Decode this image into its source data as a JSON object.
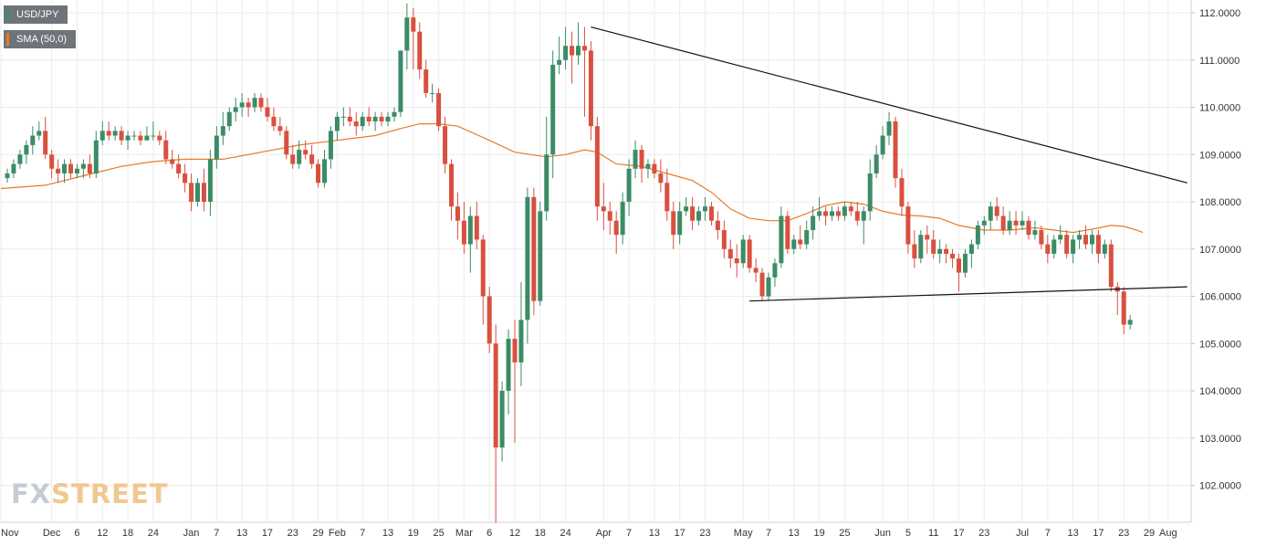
{
  "legend": [
    {
      "label": "USD/JPY",
      "color": "#3b8c66"
    },
    {
      "label": "SMA (50,0)",
      "color": "#e87a2a"
    }
  ],
  "watermark": {
    "part1": "FX",
    "part2": "STREET"
  },
  "chart_data": {
    "type": "candlestick",
    "symbol": "USD/JPY",
    "ylim": [
      101.2,
      112.3
    ],
    "y_ticks": [
      "112.0000",
      "111.0000",
      "110.0000",
      "109.0000",
      "108.0000",
      "107.0000",
      "106.0000",
      "105.0000",
      "104.0000",
      "103.0000",
      "102.0000"
    ],
    "x_ticks": [
      {
        "label": "Nov",
        "i": -1
      },
      {
        "label": "Dec",
        "i": 7
      },
      {
        "label": "6",
        "i": 11
      },
      {
        "label": "12",
        "i": 15
      },
      {
        "label": "18",
        "i": 19
      },
      {
        "label": "24",
        "i": 23
      },
      {
        "label": "Jan",
        "i": 29
      },
      {
        "label": "7",
        "i": 33
      },
      {
        "label": "13",
        "i": 37
      },
      {
        "label": "17",
        "i": 41
      },
      {
        "label": "23",
        "i": 45
      },
      {
        "label": "29",
        "i": 49
      },
      {
        "label": "Feb",
        "i": 52
      },
      {
        "label": "7",
        "i": 56
      },
      {
        "label": "13",
        "i": 60
      },
      {
        "label": "19",
        "i": 64
      },
      {
        "label": "25",
        "i": 68
      },
      {
        "label": "Mar",
        "i": 72
      },
      {
        "label": "6",
        "i": 76
      },
      {
        "label": "12",
        "i": 80
      },
      {
        "label": "18",
        "i": 84
      },
      {
        "label": "24",
        "i": 88
      },
      {
        "label": "Apr",
        "i": 94
      },
      {
        "label": "7",
        "i": 98
      },
      {
        "label": "13",
        "i": 102
      },
      {
        "label": "17",
        "i": 106
      },
      {
        "label": "23",
        "i": 110
      },
      {
        "label": "May",
        "i": 116
      },
      {
        "label": "7",
        "i": 120
      },
      {
        "label": "13",
        "i": 124
      },
      {
        "label": "19",
        "i": 128
      },
      {
        "label": "25",
        "i": 132
      },
      {
        "label": "Jun",
        "i": 138
      },
      {
        "label": "5",
        "i": 142
      },
      {
        "label": "11",
        "i": 146
      },
      {
        "label": "17",
        "i": 150
      },
      {
        "label": "23",
        "i": 154
      },
      {
        "label": "Jul",
        "i": 160
      },
      {
        "label": "7",
        "i": 164
      },
      {
        "label": "13",
        "i": 168
      },
      {
        "label": "17",
        "i": 172
      },
      {
        "label": "23",
        "i": 176
      },
      {
        "label": "29",
        "i": 180
      },
      {
        "label": "Aug",
        "i": 183
      }
    ],
    "candles": [
      [
        108.5,
        108.7,
        108.4,
        108.6
      ],
      [
        108.6,
        108.9,
        108.5,
        108.8
      ],
      [
        108.8,
        109.1,
        108.7,
        109.0
      ],
      [
        109.0,
        109.3,
        108.8,
        109.2
      ],
      [
        109.2,
        109.6,
        109.0,
        109.4
      ],
      [
        109.4,
        109.7,
        109.3,
        109.5
      ],
      [
        109.5,
        109.8,
        108.9,
        109.0
      ],
      [
        109.0,
        109.1,
        108.5,
        108.7
      ],
      [
        108.7,
        108.9,
        108.4,
        108.6
      ],
      [
        108.6,
        108.9,
        108.4,
        108.8
      ],
      [
        108.8,
        108.9,
        108.5,
        108.6
      ],
      [
        108.6,
        108.8,
        108.5,
        108.7
      ],
      [
        108.7,
        108.9,
        108.5,
        108.8
      ],
      [
        108.8,
        109.0,
        108.5,
        108.6
      ],
      [
        108.6,
        109.5,
        108.5,
        109.3
      ],
      [
        109.3,
        109.7,
        109.2,
        109.5
      ],
      [
        109.5,
        109.7,
        109.3,
        109.4
      ],
      [
        109.4,
        109.6,
        109.3,
        109.5
      ],
      [
        109.5,
        109.6,
        109.2,
        109.3
      ],
      [
        109.3,
        109.5,
        109.1,
        109.4
      ],
      [
        109.4,
        109.5,
        109.3,
        109.4
      ],
      [
        109.4,
        109.5,
        109.2,
        109.3
      ],
      [
        109.3,
        109.6,
        109.3,
        109.4
      ],
      [
        109.4,
        109.7,
        109.3,
        109.4
      ],
      [
        109.4,
        109.5,
        109.2,
        109.3
      ],
      [
        109.3,
        109.5,
        108.8,
        108.9
      ],
      [
        108.9,
        109.1,
        108.7,
        108.8
      ],
      [
        108.8,
        109.0,
        108.5,
        108.6
      ],
      [
        108.6,
        108.8,
        108.2,
        108.4
      ],
      [
        108.4,
        108.6,
        107.8,
        108.0
      ],
      [
        108.0,
        108.5,
        107.9,
        108.4
      ],
      [
        108.4,
        108.7,
        107.8,
        108.0
      ],
      [
        108.0,
        109.1,
        107.7,
        108.9
      ],
      [
        108.9,
        109.6,
        108.7,
        109.4
      ],
      [
        109.4,
        109.9,
        109.2,
        109.6
      ],
      [
        109.6,
        110.0,
        109.5,
        109.9
      ],
      [
        109.9,
        110.2,
        109.7,
        110.0
      ],
      [
        110.0,
        110.3,
        109.8,
        110.1
      ],
      [
        110.1,
        110.2,
        109.8,
        110.0
      ],
      [
        110.0,
        110.3,
        109.9,
        110.2
      ],
      [
        110.2,
        110.3,
        109.9,
        110.0
      ],
      [
        110.0,
        110.2,
        109.7,
        109.8
      ],
      [
        109.8,
        110.0,
        109.5,
        109.6
      ],
      [
        109.6,
        109.8,
        109.4,
        109.5
      ],
      [
        109.5,
        109.6,
        108.9,
        109.0
      ],
      [
        109.0,
        109.2,
        108.7,
        108.8
      ],
      [
        108.8,
        109.3,
        108.7,
        109.1
      ],
      [
        109.1,
        109.3,
        108.9,
        109.0
      ],
      [
        109.0,
        109.2,
        108.7,
        108.8
      ],
      [
        108.8,
        108.9,
        108.3,
        108.4
      ],
      [
        108.4,
        109.1,
        108.3,
        108.9
      ],
      [
        108.9,
        109.6,
        108.7,
        109.5
      ],
      [
        109.5,
        109.9,
        109.3,
        109.8
      ],
      [
        109.8,
        110.0,
        109.6,
        109.8
      ],
      [
        109.8,
        110.0,
        109.6,
        109.7
      ],
      [
        109.7,
        109.9,
        109.4,
        109.6
      ],
      [
        109.6,
        109.9,
        109.5,
        109.8
      ],
      [
        109.8,
        110.0,
        109.6,
        109.7
      ],
      [
        109.7,
        109.9,
        109.5,
        109.8
      ],
      [
        109.8,
        109.9,
        109.6,
        109.7
      ],
      [
        109.7,
        109.9,
        109.6,
        109.8
      ],
      [
        109.8,
        110.0,
        109.7,
        109.9
      ],
      [
        109.9,
        111.2,
        109.8,
        111.2
      ],
      [
        111.2,
        112.2,
        110.8,
        111.9
      ],
      [
        111.9,
        112.1,
        110.8,
        111.6
      ],
      [
        111.6,
        111.8,
        110.6,
        110.8
      ],
      [
        110.8,
        111.0,
        110.2,
        110.3
      ],
      [
        110.3,
        110.5,
        110.1,
        110.3
      ],
      [
        110.3,
        110.4,
        109.5,
        109.6
      ],
      [
        109.6,
        109.8,
        108.6,
        108.8
      ],
      [
        108.8,
        108.9,
        107.6,
        107.9
      ],
      [
        107.9,
        108.2,
        107.2,
        107.6
      ],
      [
        107.6,
        108.0,
        106.9,
        107.1
      ],
      [
        107.1,
        107.9,
        106.5,
        107.7
      ],
      [
        107.7,
        108.0,
        107.0,
        107.2
      ],
      [
        107.2,
        107.3,
        105.4,
        106.0
      ],
      [
        106.0,
        106.2,
        104.8,
        105.0
      ],
      [
        105.0,
        105.4,
        101.2,
        102.8
      ],
      [
        102.8,
        104.2,
        102.5,
        104.0
      ],
      [
        104.0,
        105.3,
        103.5,
        105.1
      ],
      [
        105.1,
        105.5,
        102.9,
        104.6
      ],
      [
        104.6,
        106.3,
        104.1,
        105.5
      ],
      [
        105.5,
        108.3,
        105.0,
        108.1
      ],
      [
        108.1,
        108.3,
        105.6,
        105.9
      ],
      [
        105.9,
        108.0,
        105.8,
        107.8
      ],
      [
        107.8,
        109.8,
        107.6,
        109.0
      ],
      [
        109.0,
        111.2,
        108.5,
        110.9
      ],
      [
        110.9,
        111.5,
        110.7,
        111.0
      ],
      [
        111.0,
        111.7,
        110.8,
        111.3
      ],
      [
        111.3,
        111.6,
        110.5,
        111.1
      ],
      [
        111.1,
        111.8,
        110.9,
        111.3
      ],
      [
        111.3,
        111.7,
        109.8,
        111.2
      ],
      [
        111.2,
        111.4,
        109.3,
        109.6
      ],
      [
        109.6,
        109.8,
        107.6,
        107.9
      ],
      [
        107.9,
        108.4,
        107.4,
        107.8
      ],
      [
        107.8,
        108.0,
        107.3,
        107.6
      ],
      [
        107.6,
        107.8,
        106.9,
        107.3
      ],
      [
        107.3,
        108.2,
        107.1,
        108.0
      ],
      [
        108.0,
        108.9,
        107.7,
        108.7
      ],
      [
        108.7,
        109.3,
        108.5,
        109.1
      ],
      [
        109.1,
        109.2,
        108.4,
        108.7
      ],
      [
        108.7,
        108.9,
        108.5,
        108.8
      ],
      [
        108.8,
        108.9,
        108.5,
        108.6
      ],
      [
        108.6,
        108.9,
        108.2,
        108.4
      ],
      [
        108.4,
        108.7,
        107.6,
        107.8
      ],
      [
        107.8,
        108.0,
        107.0,
        107.3
      ],
      [
        107.3,
        108.0,
        107.1,
        107.8
      ],
      [
        107.8,
        108.1,
        107.7,
        107.9
      ],
      [
        107.9,
        108.1,
        107.4,
        107.6
      ],
      [
        107.6,
        107.9,
        107.5,
        107.8
      ],
      [
        107.8,
        108.1,
        107.6,
        107.9
      ],
      [
        107.9,
        108.0,
        107.5,
        107.6
      ],
      [
        107.6,
        107.8,
        107.2,
        107.4
      ],
      [
        107.4,
        107.6,
        106.8,
        107.0
      ],
      [
        107.0,
        107.2,
        106.6,
        106.8
      ],
      [
        106.8,
        107.1,
        106.4,
        106.7
      ],
      [
        106.7,
        107.3,
        106.6,
        107.2
      ],
      [
        107.2,
        107.3,
        106.5,
        106.6
      ],
      [
        106.6,
        106.8,
        106.3,
        106.5
      ],
      [
        106.5,
        106.6,
        105.9,
        106.0
      ],
      [
        106.0,
        106.5,
        105.9,
        106.4
      ],
      [
        106.4,
        106.8,
        106.2,
        106.7
      ],
      [
        106.7,
        107.9,
        106.6,
        107.7
      ],
      [
        107.7,
        107.8,
        106.9,
        107.0
      ],
      [
        107.0,
        107.3,
        106.9,
        107.2
      ],
      [
        107.2,
        107.5,
        107.0,
        107.1
      ],
      [
        107.1,
        107.6,
        107.0,
        107.4
      ],
      [
        107.4,
        107.9,
        107.2,
        107.7
      ],
      [
        107.7,
        108.1,
        107.6,
        107.8
      ],
      [
        107.8,
        107.9,
        107.5,
        107.7
      ],
      [
        107.7,
        107.9,
        107.6,
        107.8
      ],
      [
        107.8,
        107.9,
        107.6,
        107.7
      ],
      [
        107.7,
        108.0,
        107.6,
        107.9
      ],
      [
        107.9,
        108.0,
        107.7,
        107.8
      ],
      [
        107.8,
        108.0,
        107.5,
        107.6
      ],
      [
        107.6,
        107.9,
        107.1,
        107.8
      ],
      [
        107.8,
        108.9,
        107.6,
        108.6
      ],
      [
        108.6,
        109.2,
        108.5,
        109.0
      ],
      [
        109.0,
        109.6,
        108.9,
        109.4
      ],
      [
        109.4,
        109.9,
        109.2,
        109.7
      ],
      [
        109.7,
        109.8,
        108.3,
        108.5
      ],
      [
        108.5,
        108.7,
        107.7,
        107.9
      ],
      [
        107.9,
        108.0,
        106.9,
        107.1
      ],
      [
        107.1,
        107.4,
        106.6,
        106.8
      ],
      [
        106.8,
        107.4,
        106.7,
        107.3
      ],
      [
        107.3,
        107.5,
        106.9,
        107.2
      ],
      [
        107.2,
        107.4,
        106.8,
        106.9
      ],
      [
        106.9,
        107.2,
        106.7,
        107.0
      ],
      [
        107.0,
        107.1,
        106.7,
        106.9
      ],
      [
        106.9,
        107.0,
        106.6,
        106.8
      ],
      [
        106.8,
        106.9,
        106.1,
        106.5
      ],
      [
        106.5,
        107.0,
        106.4,
        106.9
      ],
      [
        106.9,
        107.2,
        106.6,
        107.1
      ],
      [
        107.1,
        107.6,
        107.0,
        107.5
      ],
      [
        107.5,
        107.7,
        107.3,
        107.6
      ],
      [
        107.6,
        108.0,
        107.4,
        107.9
      ],
      [
        107.9,
        108.1,
        107.6,
        107.7
      ],
      [
        107.7,
        107.9,
        107.3,
        107.4
      ],
      [
        107.4,
        107.8,
        107.3,
        107.6
      ],
      [
        107.6,
        107.8,
        107.3,
        107.5
      ],
      [
        107.5,
        107.8,
        107.4,
        107.6
      ],
      [
        107.6,
        107.7,
        107.2,
        107.3
      ],
      [
        107.3,
        107.6,
        107.2,
        107.4
      ],
      [
        107.4,
        107.5,
        107.0,
        107.1
      ],
      [
        107.1,
        107.3,
        106.7,
        106.9
      ],
      [
        106.9,
        107.3,
        106.8,
        107.2
      ],
      [
        107.2,
        107.5,
        107.1,
        107.3
      ],
      [
        107.3,
        107.4,
        106.8,
        106.9
      ],
      [
        106.9,
        107.3,
        106.7,
        107.2
      ],
      [
        107.2,
        107.4,
        107.0,
        107.3
      ],
      [
        107.3,
        107.5,
        107.0,
        107.1
      ],
      [
        107.1,
        107.4,
        106.9,
        107.3
      ],
      [
        107.3,
        107.4,
        106.7,
        106.9
      ],
      [
        106.9,
        107.2,
        106.8,
        107.1
      ],
      [
        107.1,
        107.2,
        106.1,
        106.2
      ],
      [
        106.2,
        106.3,
        105.6,
        106.1
      ],
      [
        106.1,
        106.2,
        105.2,
        105.4
      ],
      [
        105.4,
        105.6,
        105.3,
        105.5
      ]
    ],
    "sma": [
      [
        -1,
        108.28
      ],
      [
        6,
        108.35
      ],
      [
        12,
        108.55
      ],
      [
        18,
        108.75
      ],
      [
        23,
        108.85
      ],
      [
        28,
        108.9
      ],
      [
        34,
        108.9
      ],
      [
        40,
        109.05
      ],
      [
        46,
        109.2
      ],
      [
        52,
        109.3
      ],
      [
        58,
        109.4
      ],
      [
        62,
        109.55
      ],
      [
        65,
        109.65
      ],
      [
        68,
        109.65
      ],
      [
        71,
        109.6
      ],
      [
        76,
        109.3
      ],
      [
        80,
        109.05
      ],
      [
        85,
        108.95
      ],
      [
        88,
        109.0
      ],
      [
        91,
        109.1
      ],
      [
        93,
        109.05
      ],
      [
        96,
        108.8
      ],
      [
        100,
        108.75
      ],
      [
        104,
        108.6
      ],
      [
        108,
        108.45
      ],
      [
        111,
        108.2
      ],
      [
        114,
        107.85
      ],
      [
        117,
        107.65
      ],
      [
        120,
        107.6
      ],
      [
        123,
        107.6
      ],
      [
        126,
        107.75
      ],
      [
        129,
        107.92
      ],
      [
        132,
        108.0
      ],
      [
        135,
        107.95
      ],
      [
        138,
        107.8
      ],
      [
        141,
        107.72
      ],
      [
        144,
        107.7
      ],
      [
        147,
        107.65
      ],
      [
        150,
        107.5
      ],
      [
        154,
        107.4
      ],
      [
        158,
        107.4
      ],
      [
        162,
        107.45
      ],
      [
        165,
        107.4
      ],
      [
        168,
        107.35
      ],
      [
        171,
        107.42
      ],
      [
        174,
        107.5
      ],
      [
        176,
        107.48
      ],
      [
        178,
        107.4
      ],
      [
        179,
        107.35
      ]
    ],
    "trendlines": [
      {
        "from": [
          92,
          111.7
        ],
        "to": [
          186,
          108.4
        ]
      },
      {
        "from": [
          117,
          105.9
        ],
        "to": [
          186,
          106.2
        ]
      }
    ]
  }
}
